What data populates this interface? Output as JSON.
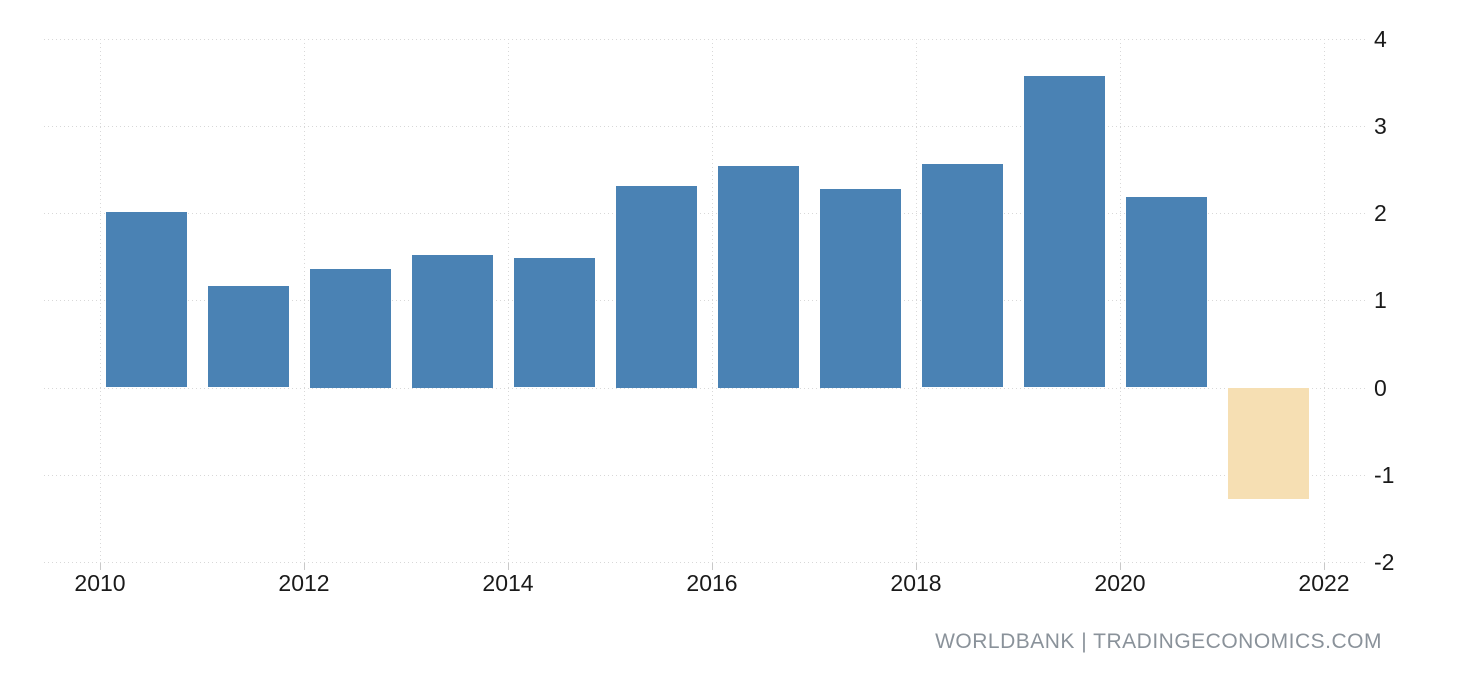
{
  "watermark": {
    "text": "WORLDBANK | TRADINGECONOMICS.COM"
  },
  "chart_data": {
    "type": "bar",
    "categories": [
      "2010",
      "2011",
      "2012",
      "2013",
      "2014",
      "2015",
      "2016",
      "2017",
      "2018",
      "2019",
      "2020",
      "2021"
    ],
    "values": [
      2.01,
      1.16,
      1.36,
      1.52,
      1.48,
      2.31,
      2.54,
      2.28,
      2.56,
      3.57,
      2.18,
      -1.27
    ],
    "title": "",
    "xlabel": "",
    "ylabel": "",
    "ylim": [
      -2,
      4
    ],
    "y_ticks": [
      4,
      3,
      2,
      1,
      0,
      -1,
      -2
    ],
    "x_tick_labels": [
      "2010",
      "2012",
      "2014",
      "2016",
      "2018",
      "2020",
      "2022"
    ],
    "grid": "dotted-both-axes",
    "legend": "none",
    "y_axis_position": "right",
    "highlight_index": 11,
    "colors": {
      "bar_default": "#4a82b4",
      "bar_highlight": "#f6dfb3",
      "gridline": "#d8d8d8",
      "tick": "#c9c9c9",
      "axis_text": "#1a1a1a",
      "watermark_text": "#8a929a",
      "background": "#ffffff"
    }
  }
}
